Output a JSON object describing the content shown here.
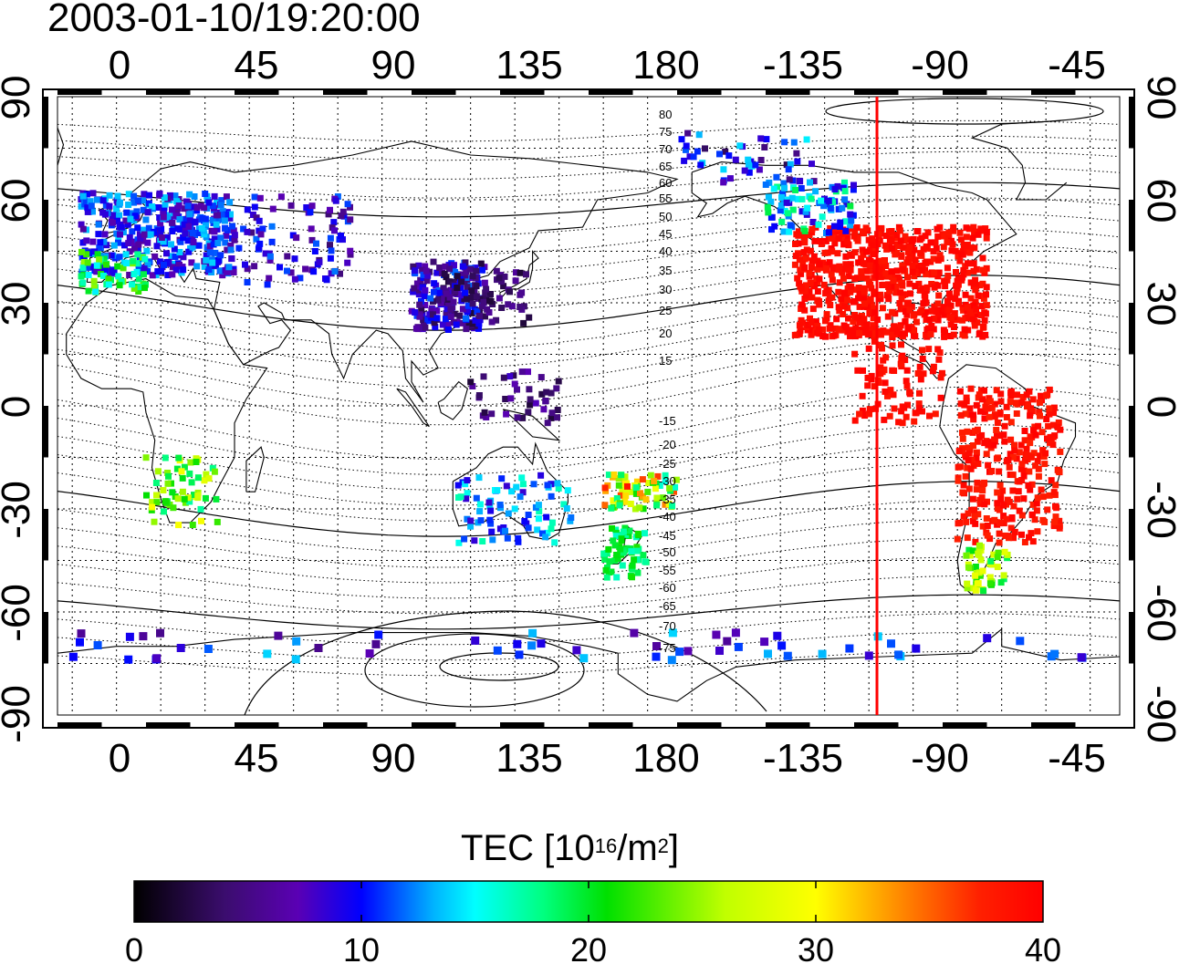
{
  "title": "2003-01-10/19:20:00",
  "map": {
    "lon_top_labels": [
      "0",
      "45",
      "90",
      "135",
      "180",
      "-135",
      "-90",
      "-45"
    ],
    "lon_bottom_labels": [
      "0",
      "45",
      "90",
      "135",
      "180",
      "-135",
      "-90",
      "-45"
    ],
    "lat_left_labels": [
      "90",
      "60",
      "30",
      "0",
      "-30",
      "-60",
      "-90"
    ],
    "lat_right_labels": [
      "90",
      "60",
      "30",
      "0",
      "-30",
      "-60",
      "-90"
    ],
    "magnetic_lat_labels_north": [
      "80",
      "75",
      "70",
      "65",
      "60",
      "55",
      "50",
      "45",
      "40",
      "35",
      "30",
      "25",
      "20",
      "15"
    ],
    "magnetic_lat_labels_south": [
      "-15",
      "-20",
      "-25",
      "-30",
      "-35",
      "-40",
      "-45",
      "-50",
      "-55",
      "-60",
      "-65",
      "-70",
      "-75"
    ],
    "terminator_color": "#ff0000"
  },
  "colorbar": {
    "title_main": "TEC  [10",
    "title_exp1": "16",
    "title_mid": "/m",
    "title_exp2": "2",
    "title_end": "]",
    "tick_labels": [
      "0",
      "10",
      "20",
      "30",
      "40"
    ],
    "range": [
      0,
      40
    ],
    "stops": [
      "#000000",
      "#3b0d6e",
      "#5a00b4",
      "#0000ff",
      "#00b4ff",
      "#00ffff",
      "#00ff80",
      "#00e000",
      "#c0ff00",
      "#ffff00",
      "#ff8000",
      "#ff2000",
      "#ff0000"
    ]
  }
}
